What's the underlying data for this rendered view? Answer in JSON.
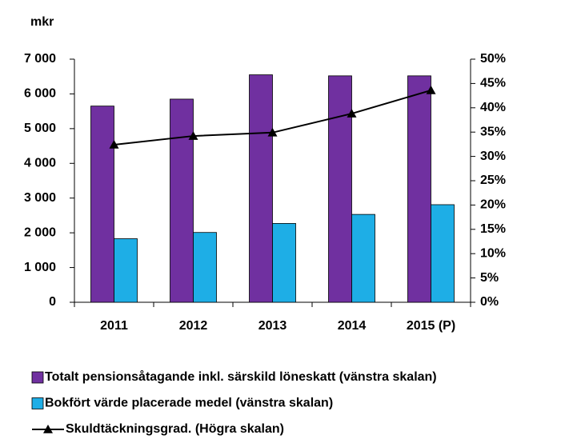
{
  "chart_data": {
    "type": "bar_line",
    "y_label": "mkr",
    "categories": [
      "2011",
      "2012",
      "2013",
      "2014",
      "2015 (P)"
    ],
    "series": [
      {
        "name": "Totalt pensionsåtagande inkl. särskild löneskatt (vänstra skalan)",
        "color": "#7030a0",
        "type": "bar",
        "values": [
          5650,
          5850,
          6550,
          6520,
          6520
        ]
      },
      {
        "name": "Bokfört värde placerade medel (vänstra skalan)",
        "color": "#1eaee6",
        "type": "bar",
        "values": [
          1830,
          2010,
          2270,
          2530,
          2810
        ]
      },
      {
        "name": "Skuldtäckningsgrad. (Högra skalan)",
        "color": "#000000",
        "type": "line",
        "axis": "y2",
        "values": [
          32.4,
          34.2,
          34.9,
          38.8,
          43.6
        ]
      }
    ],
    "ylim": [
      0,
      7000
    ],
    "yticks": [
      0,
      {
        "value": 1000,
        "label": "1 000"
      },
      {
        "value": 2000,
        "label": "2 000"
      },
      {
        "value": 3000,
        "label": "3 000"
      },
      {
        "value": 4000,
        "label": "4 000"
      },
      {
        "value": 5000,
        "label": "5 000"
      },
      {
        "value": 6000,
        "label": "6 000"
      },
      {
        "value": 7000,
        "label": "7 000"
      }
    ],
    "y2lim": [
      0,
      50
    ],
    "y2ticks": [
      {
        "value": 0,
        "label": "0%"
      },
      {
        "value": 5,
        "label": "5%"
      },
      {
        "value": 10,
        "label": "10%"
      },
      {
        "value": 15,
        "label": "15%"
      },
      {
        "value": 20,
        "label": "20%"
      },
      {
        "value": 25,
        "label": "25%"
      },
      {
        "value": 30,
        "label": "30%"
      },
      {
        "value": 35,
        "label": "35%"
      },
      {
        "value": 40,
        "label": "40%"
      },
      {
        "value": 45,
        "label": "45%"
      },
      {
        "value": 50,
        "label": "50%"
      }
    ],
    "legend": "bottom"
  }
}
